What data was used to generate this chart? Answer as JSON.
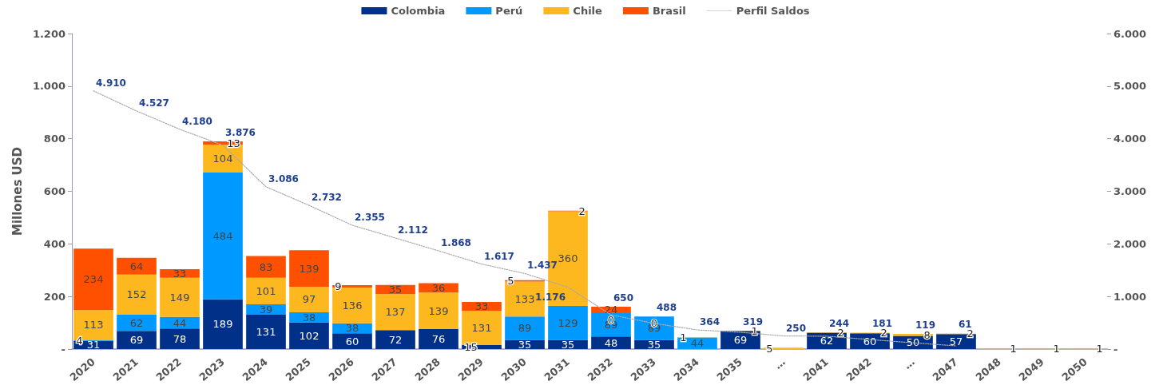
{
  "chart_data": {
    "type": "bar",
    "stacked": true,
    "ylabel": "Millones USD",
    "legend": "top",
    "grid": false,
    "data_labels": true,
    "categories": [
      "2020",
      "2021",
      "2022",
      "2023",
      "2024",
      "2025",
      "2026",
      "2027",
      "2028",
      "2029",
      "2030",
      "2031",
      "2032",
      "2033",
      "2034",
      "2035",
      "…",
      "2041",
      "2042",
      "…",
      "2047",
      "2048",
      "2049",
      "2050"
    ],
    "series": [
      {
        "name": "Colombia",
        "color": "#003087",
        "values": [
          31,
          69,
          78,
          189,
          131,
          102,
          60,
          72,
          76,
          15,
          35,
          35,
          48,
          35,
          null,
          69,
          null,
          62,
          60,
          50,
          57,
          null,
          null,
          null
        ]
      },
      {
        "name": "Perú",
        "color": "#0099ff",
        "values": [
          4,
          62,
          44,
          484,
          39,
          38,
          38,
          null,
          null,
          null,
          89,
          129,
          89,
          89,
          44,
          null,
          null,
          null,
          null,
          null,
          null,
          null,
          null,
          null
        ]
      },
      {
        "name": "Chile",
        "color": "#fdb71f",
        "values": [
          113,
          152,
          149,
          104,
          101,
          97,
          136,
          137,
          139,
          131,
          133,
          360,
          0,
          0,
          1,
          1,
          5,
          2,
          2,
          8,
          2,
          1,
          1,
          1
        ]
      },
      {
        "name": "Brasil",
        "color": "#ff5000",
        "values": [
          234,
          64,
          33,
          13,
          83,
          139,
          9,
          35,
          36,
          33,
          5,
          2,
          24,
          null,
          null,
          null,
          null,
          null,
          null,
          null,
          null,
          null,
          null,
          null
        ]
      },
      {
        "name": "Perfil Saldos",
        "type": "line",
        "axis": "y2",
        "color": "#aaaaaa",
        "line_style": "dotted",
        "marker": "none",
        "values": [
          4910,
          4527,
          4180,
          3876,
          3086,
          2732,
          2355,
          2112,
          1868,
          1617,
          1437,
          1176,
          650,
          488,
          364,
          319,
          250,
          244,
          181,
          119,
          61,
          null,
          null,
          null
        ],
        "value_labels": [
          "4.910",
          "4.527",
          "4.180",
          "3.876",
          "3.086",
          "2.732",
          "2.355",
          "2.112",
          "1.868",
          "1.617",
          "1.437",
          "1.176",
          "650",
          "488",
          "364",
          "319",
          "250",
          "244",
          "181",
          "119",
          "61",
          null,
          null,
          null
        ]
      }
    ],
    "ylim": [
      0,
      1200
    ],
    "yticks": [
      {
        "value": 0,
        "label": "-"
      },
      200,
      400,
      600,
      800,
      {
        "value": 1000,
        "label": "1.000"
      },
      {
        "value": 1200,
        "label": "1.200"
      }
    ],
    "y2lim": [
      0,
      6000
    ],
    "y2ticks": [
      {
        "value": 0,
        "label": "-"
      },
      {
        "value": 1000,
        "label": "1.000"
      },
      {
        "value": 2000,
        "label": "2.000"
      },
      {
        "value": 3000,
        "label": "3.000"
      },
      {
        "value": 4000,
        "label": "4.000"
      },
      {
        "value": 5000,
        "label": "5.000"
      },
      {
        "value": 6000,
        "label": "6.000"
      }
    ]
  }
}
